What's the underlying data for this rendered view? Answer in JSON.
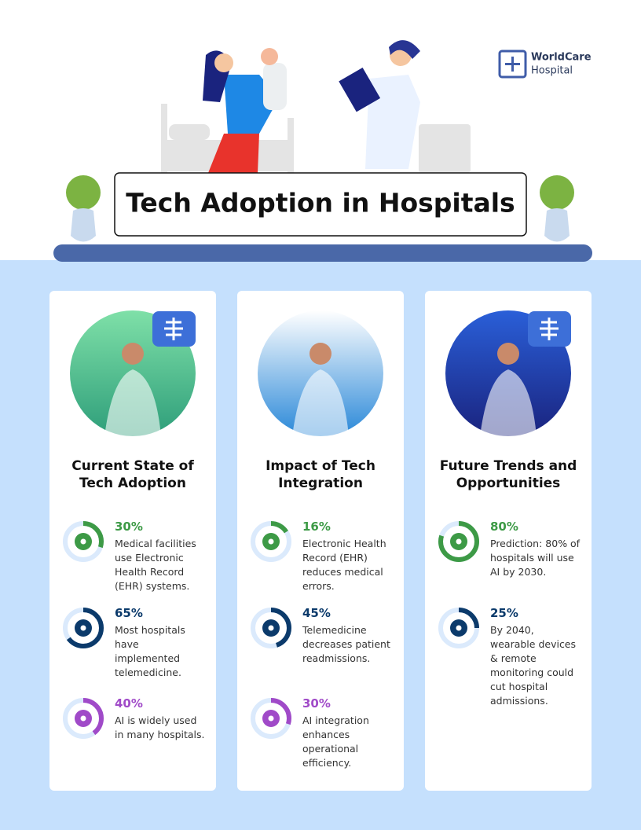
{
  "header": {
    "title": "Tech Adoption in Hospitals",
    "logo": {
      "name": "WorldCare",
      "subtitle": "Hospital"
    }
  },
  "columns": [
    {
      "heading": "Current State of Tech Adoption",
      "stats": [
        {
          "value": 30,
          "label": "30%",
          "text": "Medical facilities use Electronic Health Record (EHR) systems.",
          "color": "#3d9a46"
        },
        {
          "value": 65,
          "label": "65%",
          "text": "Most hospitals have implemented telemedicine.",
          "color": "#0b3a6b"
        },
        {
          "value": 40,
          "label": "40%",
          "text": "AI is widely used in many hospitals.",
          "color": "#a04ac8"
        }
      ]
    },
    {
      "heading": "Impact of Tech Integration",
      "stats": [
        {
          "value": 16,
          "label": "16%",
          "text": "Electronic Health Record (EHR) reduces medical errors.",
          "color": "#3d9a46"
        },
        {
          "value": 45,
          "label": "45%",
          "text": "Telemedicine decreases patient readmissions.",
          "color": "#0b3a6b"
        },
        {
          "value": 30,
          "label": "30%",
          "text": "AI integration enhances operational efficiency.",
          "color": "#a04ac8"
        }
      ]
    },
    {
      "heading": "Future Trends and Opportunities",
      "stats": [
        {
          "value": 80,
          "label": "80%",
          "text": "Prediction: 80% of hospitals will use AI by 2030.",
          "color": "#3d9a46"
        },
        {
          "value": 25,
          "label": "25%",
          "text": "By 2040, wearable devices & remote monitoring could cut hospital admissions.",
          "color": "#0b3a6b"
        }
      ]
    }
  ]
}
